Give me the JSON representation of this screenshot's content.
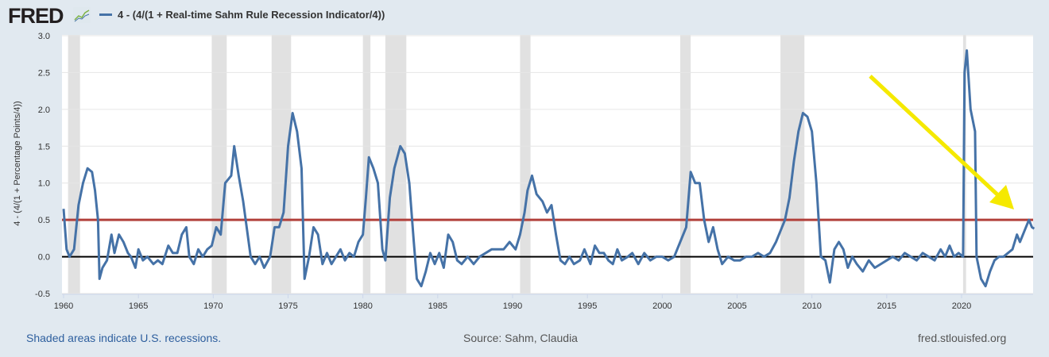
{
  "header": {
    "logo": "FRED",
    "legend_label": "4 - (4/(1 + Real-time Sahm Rule Recession Indicator/4))"
  },
  "footer": {
    "note": "Shaded areas indicate U.S. recessions.",
    "source": "Source: Sahm, Claudia",
    "site": "fred.stlouisfed.org"
  },
  "colors": {
    "series": "#4572a7",
    "threshold": "#b2403b",
    "zero": "#000000",
    "recession": "#e1e1e1",
    "annotation_arrow": "#f5e900"
  },
  "chart_data": {
    "type": "line",
    "title": "",
    "xlabel": "",
    "ylabel": "4 - (4/(1 + Percentage Points/4))",
    "xlim": [
      1960,
      2024.85
    ],
    "ylim": [
      -0.5,
      3.0
    ],
    "grid": true,
    "x_ticks": [
      "1960",
      "1965",
      "1970",
      "1975",
      "1980",
      "1985",
      "1990",
      "1995",
      "2000",
      "2005",
      "2010",
      "2015",
      "2020"
    ],
    "y_ticks": [
      "3.0",
      "2.5",
      "2.0",
      "1.5",
      "1.0",
      "0.5",
      "0.0",
      "-0.5"
    ],
    "reference_lines": [
      {
        "y": 0.5,
        "color": "#b2403b"
      },
      {
        "y": 0.0,
        "color": "#000000"
      }
    ],
    "recessions": [
      [
        1960.3,
        1961.1
      ],
      [
        1969.9,
        1970.9
      ],
      [
        1973.9,
        1975.2
      ],
      [
        1980.0,
        1980.5
      ],
      [
        1981.5,
        1982.9
      ],
      [
        1990.5,
        1991.2
      ],
      [
        2001.2,
        2001.9
      ],
      [
        2007.9,
        2009.5
      ],
      [
        2020.1,
        2020.3
      ]
    ],
    "series": [
      {
        "name": "4 - (4/(1 + Real-time Sahm Rule Recession Indicator/4))",
        "points": [
          [
            1960.0,
            0.65
          ],
          [
            1960.2,
            0.1
          ],
          [
            1960.4,
            0.0
          ],
          [
            1960.7,
            0.1
          ],
          [
            1961.0,
            0.7
          ],
          [
            1961.3,
            1.0
          ],
          [
            1961.6,
            1.2
          ],
          [
            1961.9,
            1.15
          ],
          [
            1962.1,
            0.9
          ],
          [
            1962.3,
            0.5
          ],
          [
            1962.4,
            -0.3
          ],
          [
            1962.6,
            -0.15
          ],
          [
            1962.9,
            -0.05
          ],
          [
            1963.2,
            0.3
          ],
          [
            1963.4,
            0.05
          ],
          [
            1963.7,
            0.3
          ],
          [
            1964.0,
            0.2
          ],
          [
            1964.3,
            0.05
          ],
          [
            1964.5,
            0.0
          ],
          [
            1964.8,
            -0.15
          ],
          [
            1965.0,
            0.1
          ],
          [
            1965.3,
            -0.05
          ],
          [
            1965.6,
            0.0
          ],
          [
            1966.0,
            -0.1
          ],
          [
            1966.3,
            -0.05
          ],
          [
            1966.6,
            -0.1
          ],
          [
            1967.0,
            0.15
          ],
          [
            1967.3,
            0.05
          ],
          [
            1967.6,
            0.05
          ],
          [
            1967.9,
            0.3
          ],
          [
            1968.2,
            0.4
          ],
          [
            1968.4,
            0.0
          ],
          [
            1968.7,
            -0.1
          ],
          [
            1969.0,
            0.1
          ],
          [
            1969.3,
            0.0
          ],
          [
            1969.6,
            0.1
          ],
          [
            1969.9,
            0.15
          ],
          [
            1970.2,
            0.4
          ],
          [
            1970.5,
            0.3
          ],
          [
            1970.8,
            1.0
          ],
          [
            1971.2,
            1.1
          ],
          [
            1971.4,
            1.5
          ],
          [
            1971.7,
            1.1
          ],
          [
            1972.0,
            0.75
          ],
          [
            1972.3,
            0.3
          ],
          [
            1972.5,
            0.0
          ],
          [
            1972.8,
            -0.1
          ],
          [
            1973.1,
            0.0
          ],
          [
            1973.4,
            -0.15
          ],
          [
            1973.8,
            0.0
          ],
          [
            1974.1,
            0.4
          ],
          [
            1974.4,
            0.4
          ],
          [
            1974.7,
            0.6
          ],
          [
            1975.0,
            1.5
          ],
          [
            1975.3,
            1.95
          ],
          [
            1975.6,
            1.7
          ],
          [
            1975.9,
            1.2
          ],
          [
            1976.1,
            -0.3
          ],
          [
            1976.4,
            0.0
          ],
          [
            1976.7,
            0.4
          ],
          [
            1977.0,
            0.3
          ],
          [
            1977.3,
            -0.1
          ],
          [
            1977.6,
            0.05
          ],
          [
            1977.9,
            -0.1
          ],
          [
            1978.2,
            0.0
          ],
          [
            1978.5,
            0.1
          ],
          [
            1978.8,
            -0.05
          ],
          [
            1979.1,
            0.05
          ],
          [
            1979.4,
            0.0
          ],
          [
            1979.7,
            0.2
          ],
          [
            1980.0,
            0.3
          ],
          [
            1980.2,
            0.8
          ],
          [
            1980.4,
            1.35
          ],
          [
            1980.7,
            1.2
          ],
          [
            1981.0,
            1.0
          ],
          [
            1981.3,
            0.1
          ],
          [
            1981.5,
            -0.05
          ],
          [
            1981.8,
            0.8
          ],
          [
            1982.1,
            1.2
          ],
          [
            1982.5,
            1.5
          ],
          [
            1982.8,
            1.4
          ],
          [
            1983.1,
            1.0
          ],
          [
            1983.4,
            0.2
          ],
          [
            1983.6,
            -0.3
          ],
          [
            1983.9,
            -0.4
          ],
          [
            1984.2,
            -0.2
          ],
          [
            1984.5,
            0.05
          ],
          [
            1984.8,
            -0.1
          ],
          [
            1985.1,
            0.05
          ],
          [
            1985.4,
            -0.15
          ],
          [
            1985.7,
            0.3
          ],
          [
            1986.0,
            0.2
          ],
          [
            1986.3,
            -0.05
          ],
          [
            1986.6,
            -0.1
          ],
          [
            1987.0,
            0.0
          ],
          [
            1987.4,
            -0.1
          ],
          [
            1987.8,
            0.0
          ],
          [
            1988.2,
            0.05
          ],
          [
            1988.6,
            0.1
          ],
          [
            1989.0,
            0.1
          ],
          [
            1989.4,
            0.1
          ],
          [
            1989.8,
            0.2
          ],
          [
            1990.2,
            0.1
          ],
          [
            1990.5,
            0.3
          ],
          [
            1990.8,
            0.6
          ],
          [
            1991.0,
            0.9
          ],
          [
            1991.3,
            1.1
          ],
          [
            1991.6,
            0.85
          ],
          [
            1992.0,
            0.75
          ],
          [
            1992.3,
            0.6
          ],
          [
            1992.6,
            0.7
          ],
          [
            1992.9,
            0.3
          ],
          [
            1993.2,
            -0.05
          ],
          [
            1993.5,
            -0.1
          ],
          [
            1993.8,
            0.0
          ],
          [
            1994.1,
            -0.1
          ],
          [
            1994.5,
            -0.05
          ],
          [
            1994.8,
            0.1
          ],
          [
            1995.2,
            -0.1
          ],
          [
            1995.5,
            0.15
          ],
          [
            1995.8,
            0.05
          ],
          [
            1996.1,
            0.05
          ],
          [
            1996.4,
            -0.05
          ],
          [
            1996.7,
            -0.1
          ],
          [
            1997.0,
            0.1
          ],
          [
            1997.3,
            -0.05
          ],
          [
            1997.7,
            0.0
          ],
          [
            1998.0,
            0.05
          ],
          [
            1998.4,
            -0.1
          ],
          [
            1998.8,
            0.05
          ],
          [
            1999.2,
            -0.05
          ],
          [
            1999.6,
            0.0
          ],
          [
            2000.0,
            0.0
          ],
          [
            2000.4,
            -0.05
          ],
          [
            2000.8,
            0.0
          ],
          [
            2001.2,
            0.2
          ],
          [
            2001.6,
            0.4
          ],
          [
            2001.9,
            1.15
          ],
          [
            2002.2,
            1.0
          ],
          [
            2002.5,
            1.0
          ],
          [
            2002.8,
            0.5
          ],
          [
            2003.1,
            0.2
          ],
          [
            2003.4,
            0.4
          ],
          [
            2003.7,
            0.1
          ],
          [
            2004.0,
            -0.1
          ],
          [
            2004.4,
            0.0
          ],
          [
            2004.8,
            -0.05
          ],
          [
            2005.2,
            -0.05
          ],
          [
            2005.6,
            0.0
          ],
          [
            2006.0,
            0.0
          ],
          [
            2006.4,
            0.05
          ],
          [
            2006.8,
            0.0
          ],
          [
            2007.2,
            0.05
          ],
          [
            2007.6,
            0.2
          ],
          [
            2007.9,
            0.35
          ],
          [
            2008.2,
            0.5
          ],
          [
            2008.5,
            0.8
          ],
          [
            2008.8,
            1.3
          ],
          [
            2009.1,
            1.7
          ],
          [
            2009.4,
            1.95
          ],
          [
            2009.7,
            1.9
          ],
          [
            2010.0,
            1.7
          ],
          [
            2010.3,
            1.0
          ],
          [
            2010.6,
            0.0
          ],
          [
            2010.9,
            -0.05
          ],
          [
            2011.2,
            -0.35
          ],
          [
            2011.5,
            0.1
          ],
          [
            2011.8,
            0.2
          ],
          [
            2012.1,
            0.1
          ],
          [
            2012.4,
            -0.15
          ],
          [
            2012.7,
            0.0
          ],
          [
            2013.0,
            -0.1
          ],
          [
            2013.4,
            -0.2
          ],
          [
            2013.8,
            -0.05
          ],
          [
            2014.2,
            -0.15
          ],
          [
            2014.6,
            -0.1
          ],
          [
            2015.0,
            -0.05
          ],
          [
            2015.4,
            0.0
          ],
          [
            2015.8,
            -0.05
          ],
          [
            2016.2,
            0.05
          ],
          [
            2016.6,
            0.0
          ],
          [
            2017.0,
            -0.05
          ],
          [
            2017.4,
            0.05
          ],
          [
            2017.8,
            0.0
          ],
          [
            2018.2,
            -0.05
          ],
          [
            2018.6,
            0.1
          ],
          [
            2018.9,
            0.0
          ],
          [
            2019.2,
            0.15
          ],
          [
            2019.5,
            0.0
          ],
          [
            2019.8,
            0.05
          ],
          [
            2020.1,
            0.0
          ],
          [
            2020.2,
            2.5
          ],
          [
            2020.35,
            2.8
          ],
          [
            2020.6,
            2.0
          ],
          [
            2020.9,
            1.7
          ],
          [
            2021.0,
            0.0
          ],
          [
            2021.3,
            -0.3
          ],
          [
            2021.6,
            -0.4
          ],
          [
            2021.9,
            -0.2
          ],
          [
            2022.2,
            -0.05
          ],
          [
            2022.5,
            0.0
          ],
          [
            2022.8,
            0.0
          ],
          [
            2023.1,
            0.05
          ],
          [
            2023.4,
            0.1
          ],
          [
            2023.7,
            0.3
          ],
          [
            2023.9,
            0.2
          ],
          [
            2024.2,
            0.35
          ],
          [
            2024.5,
            0.5
          ],
          [
            2024.7,
            0.4
          ],
          [
            2024.85,
            0.38
          ]
        ]
      }
    ]
  }
}
